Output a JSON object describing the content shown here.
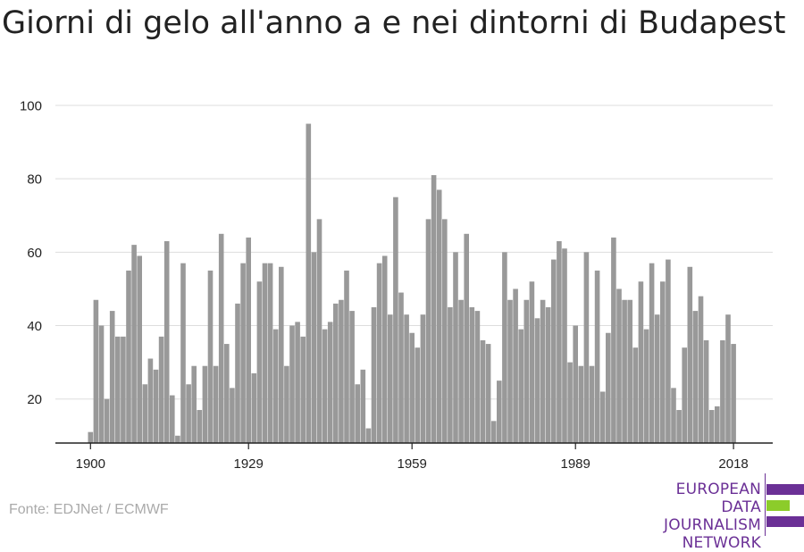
{
  "title": "Giorni di gelo all'anno a e nei dintorni di Budapest",
  "source": "Fonte: EDJNet / ECMWF",
  "logo": {
    "lines": [
      "EUROPEAN",
      "DATA JOURNALISM",
      "NETWORK"
    ],
    "colors": {
      "purple": "#6b3096",
      "green": "#8ccc2a"
    }
  },
  "colors": {
    "bar": "#999999",
    "grid": "#dddddd",
    "axis": "#222222",
    "tick_text": "#222222"
  },
  "chart_data": {
    "type": "bar",
    "title": "Giorni di gelo all'anno a e nei dintorni di Budapest",
    "xlabel": "",
    "ylabel": "",
    "ylim": [
      8,
      100
    ],
    "y_ticks": [
      20,
      40,
      60,
      80,
      100
    ],
    "x_ticks": [
      1900,
      1929,
      1959,
      1989,
      2018
    ],
    "grid": true,
    "x": [
      1900,
      1901,
      1902,
      1903,
      1904,
      1905,
      1906,
      1907,
      1908,
      1909,
      1910,
      1911,
      1912,
      1913,
      1914,
      1915,
      1916,
      1917,
      1918,
      1919,
      1920,
      1921,
      1922,
      1923,
      1924,
      1925,
      1926,
      1927,
      1928,
      1929,
      1930,
      1931,
      1932,
      1933,
      1934,
      1935,
      1936,
      1937,
      1938,
      1939,
      1940,
      1941,
      1942,
      1943,
      1944,
      1945,
      1946,
      1947,
      1948,
      1949,
      1950,
      1951,
      1952,
      1953,
      1954,
      1955,
      1956,
      1957,
      1958,
      1959,
      1960,
      1961,
      1962,
      1963,
      1964,
      1965,
      1966,
      1967,
      1968,
      1969,
      1970,
      1971,
      1972,
      1973,
      1974,
      1975,
      1976,
      1977,
      1978,
      1979,
      1980,
      1981,
      1982,
      1983,
      1984,
      1985,
      1986,
      1987,
      1988,
      1989,
      1990,
      1991,
      1992,
      1993,
      1994,
      1995,
      1996,
      1997,
      1998,
      1999,
      2000,
      2001,
      2002,
      2003,
      2004,
      2005,
      2006,
      2007,
      2008,
      2009,
      2010,
      2011,
      2012,
      2013,
      2014,
      2015,
      2016,
      2017,
      2018
    ],
    "values": [
      11,
      47,
      40,
      20,
      44,
      37,
      37,
      55,
      62,
      59,
      24,
      31,
      28,
      37,
      63,
      21,
      10,
      57,
      24,
      29,
      17,
      29,
      55,
      29,
      65,
      35,
      23,
      46,
      57,
      64,
      27,
      52,
      57,
      57,
      39,
      56,
      29,
      40,
      41,
      37,
      95,
      60,
      69,
      39,
      41,
      46,
      47,
      55,
      44,
      24,
      28,
      12,
      45,
      57,
      59,
      43,
      75,
      49,
      43,
      38,
      34,
      43,
      69,
      81,
      77,
      69,
      45,
      60,
      47,
      65,
      45,
      44,
      36,
      35,
      14,
      25,
      60,
      47,
      50,
      39,
      47,
      52,
      42,
      47,
      45,
      58,
      63,
      61,
      30,
      40,
      29,
      60,
      29,
      55,
      22,
      38,
      64,
      50,
      47,
      47,
      34,
      52,
      39,
      57,
      43,
      52,
      58,
      23,
      17,
      34,
      56,
      44,
      48,
      36,
      17,
      18,
      36,
      43,
      35
    ]
  }
}
